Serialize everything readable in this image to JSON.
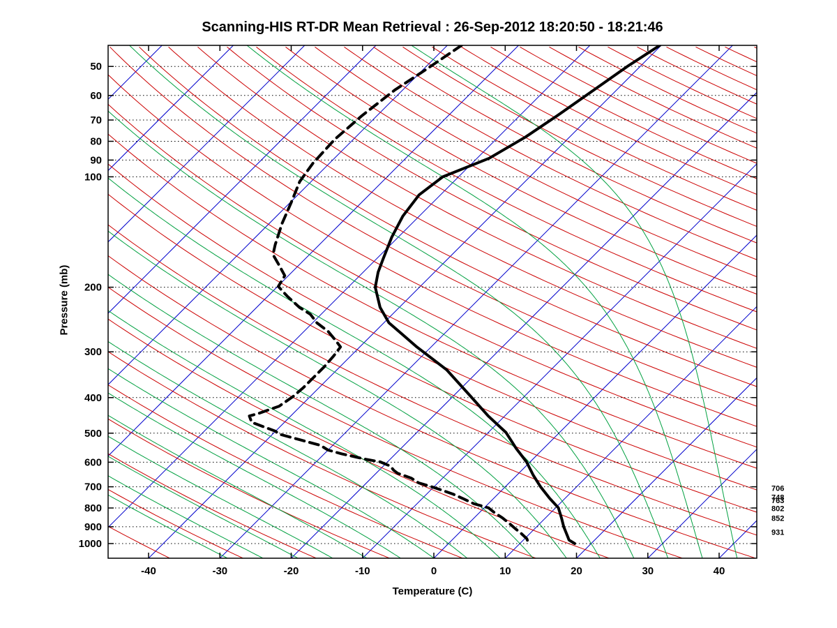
{
  "axes": {
    "x_label": "Temperature (C)",
    "y_label": "Pressure (mb)",
    "x_ticks": [
      -40,
      -30,
      -20,
      -10,
      0,
      10,
      20,
      30,
      40
    ],
    "y_ticks": [
      50,
      60,
      70,
      80,
      90,
      100,
      200,
      300,
      400,
      500,
      600,
      700,
      800,
      900,
      1000
    ],
    "x_surface_range": [
      -45.7,
      45.3
    ],
    "p_range": [
      43.8,
      1096.5
    ]
  },
  "colors": {
    "isotherm": "#0000CC",
    "dry_adiabat": "#CC0000",
    "moist_adiabat": "#00A040",
    "profile": "#000000",
    "frame": "#000000"
  },
  "right_pressure_labels": [
    "706",
    "748",
    "763",
    "802",
    "852",
    "931"
  ],
  "chart_data": {
    "type": "line",
    "title": "Scanning-HIS RT-DR Mean Retrieval : 26-Sep-2012 18:20:50 - 18:21:46",
    "xlabel": "Temperature (C)",
    "ylabel": "Pressure (mb)",
    "y_scale": "log",
    "skew_deg": 45,
    "legend": "none",
    "series": [
      {
        "name": "temperature",
        "line": "solid",
        "color": "#000000",
        "points_p_mb_t_c": [
          [
            43.8,
            -40.2
          ],
          [
            50,
            -41.8
          ],
          [
            58,
            -43.2
          ],
          [
            68,
            -44.7
          ],
          [
            78,
            -46.2
          ],
          [
            89,
            -48.3
          ],
          [
            100,
            -52.2
          ],
          [
            112,
            -53.0
          ],
          [
            128,
            -52.3
          ],
          [
            146,
            -50.9
          ],
          [
            167,
            -49.1
          ],
          [
            182,
            -47.9
          ],
          [
            200,
            -46.2
          ],
          [
            227,
            -42.7
          ],
          [
            250,
            -39.3
          ],
          [
            270,
            -35.6
          ],
          [
            291,
            -32.0
          ],
          [
            336,
            -24.6
          ],
          [
            397,
            -17.5
          ],
          [
            449,
            -12.3
          ],
          [
            498,
            -7.5
          ],
          [
            551,
            -3.8
          ],
          [
            599,
            -0.5
          ],
          [
            651,
            2.3
          ],
          [
            701,
            5.0
          ],
          [
            752,
            7.8
          ],
          [
            799,
            10.4
          ],
          [
            850,
            12.2
          ],
          [
            900,
            13.8
          ],
          [
            953,
            15.6
          ],
          [
            978,
            16.4
          ],
          [
            1000,
            17.7
          ]
        ]
      },
      {
        "name": "dewpoint",
        "line": "dashed",
        "color": "#000000",
        "points_p_mb_t_c": [
          [
            43.8,
            -68.0
          ],
          [
            51,
            -69.6
          ],
          [
            58,
            -71.1
          ],
          [
            68,
            -72.1
          ],
          [
            79,
            -72.6
          ],
          [
            92,
            -72.3
          ],
          [
            103,
            -71.6
          ],
          [
            118,
            -69.8
          ],
          [
            134,
            -68.2
          ],
          [
            153,
            -66.2
          ],
          [
            163,
            -65.1
          ],
          [
            174,
            -62.8
          ],
          [
            186,
            -60.5
          ],
          [
            199,
            -59.9
          ],
          [
            212,
            -57.2
          ],
          [
            227,
            -54.0
          ],
          [
            237,
            -51.5
          ],
          [
            250,
            -49.4
          ],
          [
            264,
            -46.6
          ],
          [
            280,
            -44.2
          ],
          [
            291,
            -42.7
          ],
          [
            308,
            -42.4
          ],
          [
            329,
            -42.2
          ],
          [
            351,
            -42.2
          ],
          [
            375,
            -42.2
          ],
          [
            397,
            -42.4
          ],
          [
            422,
            -43.0
          ],
          [
            441,
            -44.8
          ],
          [
            449,
            -45.8
          ],
          [
            467,
            -44.6
          ],
          [
            481,
            -42.2
          ],
          [
            494,
            -40.0
          ],
          [
            503,
            -39.1
          ],
          [
            521,
            -35.4
          ],
          [
            540,
            -31.7
          ],
          [
            556,
            -30.0
          ],
          [
            569,
            -27.6
          ],
          [
            581,
            -25.1
          ],
          [
            589,
            -23.4
          ],
          [
            599,
            -21.0
          ],
          [
            615,
            -19.0
          ],
          [
            632,
            -17.9
          ],
          [
            643,
            -17.0
          ],
          [
            663,
            -14.4
          ],
          [
            683,
            -12.7
          ],
          [
            701,
            -10.2
          ],
          [
            717,
            -8.2
          ],
          [
            733,
            -6.3
          ],
          [
            756,
            -4.1
          ],
          [
            779,
            -2.0
          ],
          [
            799,
            0.6
          ],
          [
            825,
            2.2
          ],
          [
            850,
            3.9
          ],
          [
            881,
            5.7
          ],
          [
            913,
            7.4
          ],
          [
            941,
            8.9
          ],
          [
            970,
            10.3
          ],
          [
            996,
            11.1
          ]
        ]
      }
    ],
    "background": {
      "isotherms_c": {
        "min": -120,
        "max": 40,
        "step": 10,
        "color": "#0000CC"
      },
      "dry_adiabats_theta_k": {
        "min": 220,
        "max": 600,
        "step": 10,
        "color": "#CC0000"
      },
      "moist_adiabats_start_c": {
        "min": -35,
        "max": 40,
        "step": 5,
        "color": "#00A040"
      },
      "pressure_gridlines_mb": [
        50,
        60,
        70,
        80,
        90,
        100,
        200,
        300,
        400,
        500,
        600,
        700,
        800,
        900,
        1000
      ]
    }
  }
}
